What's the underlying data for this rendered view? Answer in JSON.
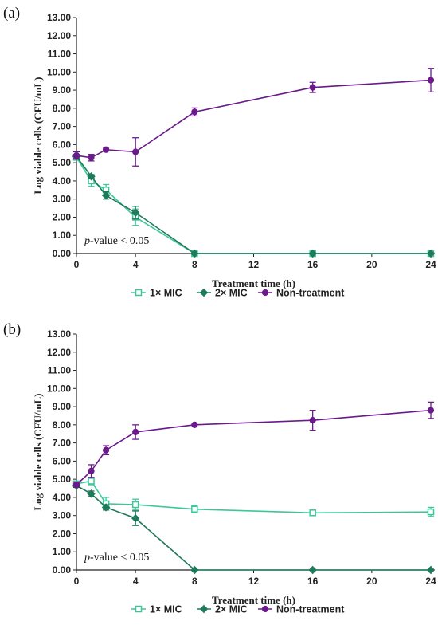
{
  "chart_data": [
    {
      "type": "line",
      "panel_label": "(a)",
      "xlabel": "Treatment time (h)",
      "ylabel": "Log viable cells (CFU/mL)",
      "xlim": [
        0,
        24
      ],
      "ylim": [
        0,
        13
      ],
      "x_ticks": [
        0,
        4,
        8,
        12,
        16,
        20,
        24
      ],
      "y_ticks": [
        "0.00",
        "1.00",
        "2.00",
        "3.00",
        "4.00",
        "5.00",
        "6.00",
        "7.00",
        "8.00",
        "9.00",
        "10.00",
        "11.00",
        "12.00",
        "13.00"
      ],
      "annotation": {
        "italic": "p",
        "text": "-value < 0.05"
      },
      "legend_position": "bottom",
      "series": [
        {
          "name": "1× MIC",
          "color": "#3cc79a",
          "marker": "square-open",
          "points": [
            [
              0,
              5.3,
              0.1
            ],
            [
              1,
              4.0,
              0.3
            ],
            [
              2,
              3.5,
              0.3
            ],
            [
              4,
              2.0,
              0.45
            ],
            [
              8,
              0.0,
              0.03
            ],
            [
              16,
              0.0,
              0.03
            ],
            [
              24,
              0.0,
              0.03
            ]
          ]
        },
        {
          "name": "2× MIC",
          "color": "#1f7a5a",
          "marker": "diamond",
          "points": [
            [
              0,
              5.35,
              0.1
            ],
            [
              1,
              4.25,
              0.1
            ],
            [
              2,
              3.2,
              0.2
            ],
            [
              4,
              2.25,
              0.35
            ],
            [
              8,
              0.0,
              0.03
            ],
            [
              16,
              0.0,
              0.03
            ],
            [
              24,
              0.0,
              0.03
            ]
          ]
        },
        {
          "name": "Non-treatment",
          "color": "#6a1a8a",
          "marker": "circle",
          "points": [
            [
              0,
              5.4,
              0.2
            ],
            [
              1,
              5.28,
              0.18
            ],
            [
              2,
              5.72,
              0.08
            ],
            [
              4,
              5.6,
              0.78
            ],
            [
              8,
              7.8,
              0.22
            ],
            [
              16,
              9.15,
              0.28
            ],
            [
              24,
              9.55,
              0.65
            ]
          ]
        }
      ]
    },
    {
      "type": "line",
      "panel_label": "(b)",
      "xlabel": "Treatment time (h)",
      "ylabel": "Log viable cells (CFU/mL)",
      "xlim": [
        0,
        24
      ],
      "ylim": [
        0,
        13
      ],
      "x_ticks": [
        0,
        4,
        8,
        12,
        16,
        20,
        24
      ],
      "y_ticks": [
        "0.00",
        "1.00",
        "2.00",
        "3.00",
        "4.00",
        "5.00",
        "6.00",
        "7.00",
        "8.00",
        "9.00",
        "10.00",
        "11.00",
        "12.00",
        "13.00"
      ],
      "annotation": {
        "italic": "p",
        "text": "-value < 0.05"
      },
      "legend_position": "bottom",
      "series": [
        {
          "name": "1× MIC",
          "color": "#3cc79a",
          "marker": "square-open",
          "points": [
            [
              0,
              4.75,
              0.1
            ],
            [
              1,
              4.9,
              0.2
            ],
            [
              2,
              3.65,
              0.35
            ],
            [
              4,
              3.6,
              0.3
            ],
            [
              8,
              3.35,
              0.2
            ],
            [
              16,
              3.15,
              0.15
            ],
            [
              24,
              3.2,
              0.25
            ]
          ]
        },
        {
          "name": "2× MIC",
          "color": "#1f7a5a",
          "marker": "diamond",
          "points": [
            [
              0,
              4.65,
              0.1
            ],
            [
              1,
              4.2,
              0.15
            ],
            [
              2,
              3.45,
              0.15
            ],
            [
              4,
              2.85,
              0.4
            ],
            [
              8,
              0.0,
              0.03
            ],
            [
              16,
              0.0,
              0.03
            ],
            [
              24,
              0.0,
              0.03
            ]
          ]
        },
        {
          "name": "Non-treatment",
          "color": "#6a1a8a",
          "marker": "circle",
          "points": [
            [
              0,
              4.7,
              0.15
            ],
            [
              1,
              5.45,
              0.35
            ],
            [
              2,
              6.6,
              0.25
            ],
            [
              4,
              7.6,
              0.4
            ],
            [
              8,
              8.0,
              0.05
            ],
            [
              16,
              8.25,
              0.55
            ],
            [
              24,
              8.8,
              0.45
            ]
          ]
        }
      ]
    }
  ]
}
